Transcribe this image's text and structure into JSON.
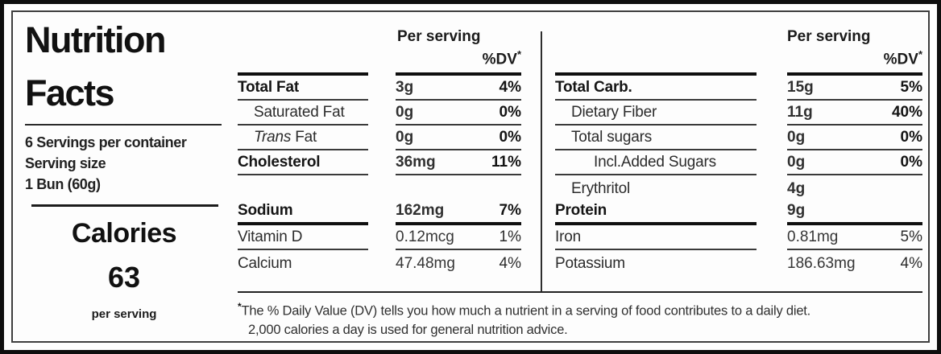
{
  "panel_left": {
    "title_line1": "Nutrition",
    "title_line2": "Facts",
    "servings_per_container": "6 Servings per container",
    "serving_size_label": "Serving size",
    "serving_size_value": "1 Bun (60g)",
    "calories_label": "Calories",
    "calories_value": "63",
    "calories_unit": "per serving"
  },
  "header": {
    "per_serving": "Per serving",
    "dv": "%DV",
    "asterisk": "*"
  },
  "middle_table": {
    "rows": [
      {
        "name": "Total Fat",
        "amount": "3g",
        "dv": "4%",
        "indent": 0,
        "name_bold": true,
        "value_bold": true,
        "rule": "thin"
      },
      {
        "name": "Saturated Fat",
        "amount": "0g",
        "dv": "0%",
        "indent": 1,
        "name_bold": false,
        "value_bold": true,
        "rule": "thin"
      },
      {
        "name": "Fat",
        "name_italic": "Trans",
        "amount": "0g",
        "dv": "0%",
        "indent": 1,
        "name_bold": false,
        "value_bold": true,
        "rule": "thin"
      },
      {
        "name": "Cholesterol",
        "amount": "36mg",
        "dv": "11%",
        "indent": 0,
        "name_bold": true,
        "value_bold": true,
        "rule": "thin"
      },
      {
        "spacer": true
      },
      {
        "name": "Sodium",
        "amount": "162mg",
        "dv": "7%",
        "indent": 0,
        "name_bold": true,
        "value_bold": true,
        "rule": "thick"
      },
      {
        "name": "Vitamin D",
        "amount": "0.12mcg",
        "dv": "1%",
        "indent": 0,
        "name_bold": false,
        "value_bold": false,
        "rule": "thin"
      },
      {
        "name": "Calcium",
        "amount": "47.48mg",
        "dv": "4%",
        "indent": 0,
        "name_bold": false,
        "value_bold": false,
        "rule": "none"
      }
    ]
  },
  "right_table": {
    "rows": [
      {
        "name": "Total Carb.",
        "amount": "15g",
        "dv": "5%",
        "indent": 0,
        "name_bold": true,
        "value_bold": true,
        "rule": "thin"
      },
      {
        "name": "Dietary Fiber",
        "amount": "11g",
        "dv": "40%",
        "indent": 1,
        "name_bold": false,
        "value_bold": true,
        "rule": "thin"
      },
      {
        "name": "Total sugars",
        "amount": "0g",
        "dv": "0%",
        "indent": 1,
        "name_bold": false,
        "value_bold": true,
        "rule": "thin"
      },
      {
        "name": "Incl.Added Sugars",
        "amount": "0g",
        "dv": "0%",
        "indent": 2,
        "name_bold": false,
        "value_bold": true,
        "rule": "thin"
      },
      {
        "name": "Erythritol",
        "amount": "4g",
        "dv": "",
        "indent": 1,
        "name_bold": false,
        "value_bold": true,
        "rule": "none"
      },
      {
        "name": "Protein",
        "amount": "9g",
        "dv": "",
        "indent": 0,
        "name_bold": true,
        "value_bold": true,
        "rule": "thick"
      },
      {
        "name": "Iron",
        "amount": "0.81mg",
        "dv": "5%",
        "indent": 0,
        "name_bold": false,
        "value_bold": false,
        "rule": "thin"
      },
      {
        "name": "Potassium",
        "amount": "186.63mg",
        "dv": "4%",
        "indent": 0,
        "name_bold": false,
        "value_bold": false,
        "rule": "none"
      }
    ]
  },
  "footnote": {
    "asterisk": "*",
    "line1": "The % Daily Value (DV) tells you how much a nutrient in a serving of food contributes to a daily diet.",
    "line2": "2,000 calories a day is used for general nutrition advice."
  },
  "colors": {
    "outer_border": "#0e0e0e",
    "inner_border": "#3e3e3e",
    "rule_thick": "#0f0f0f",
    "rule_thin": "#3a3a3a",
    "text": "#1f1f1f"
  }
}
